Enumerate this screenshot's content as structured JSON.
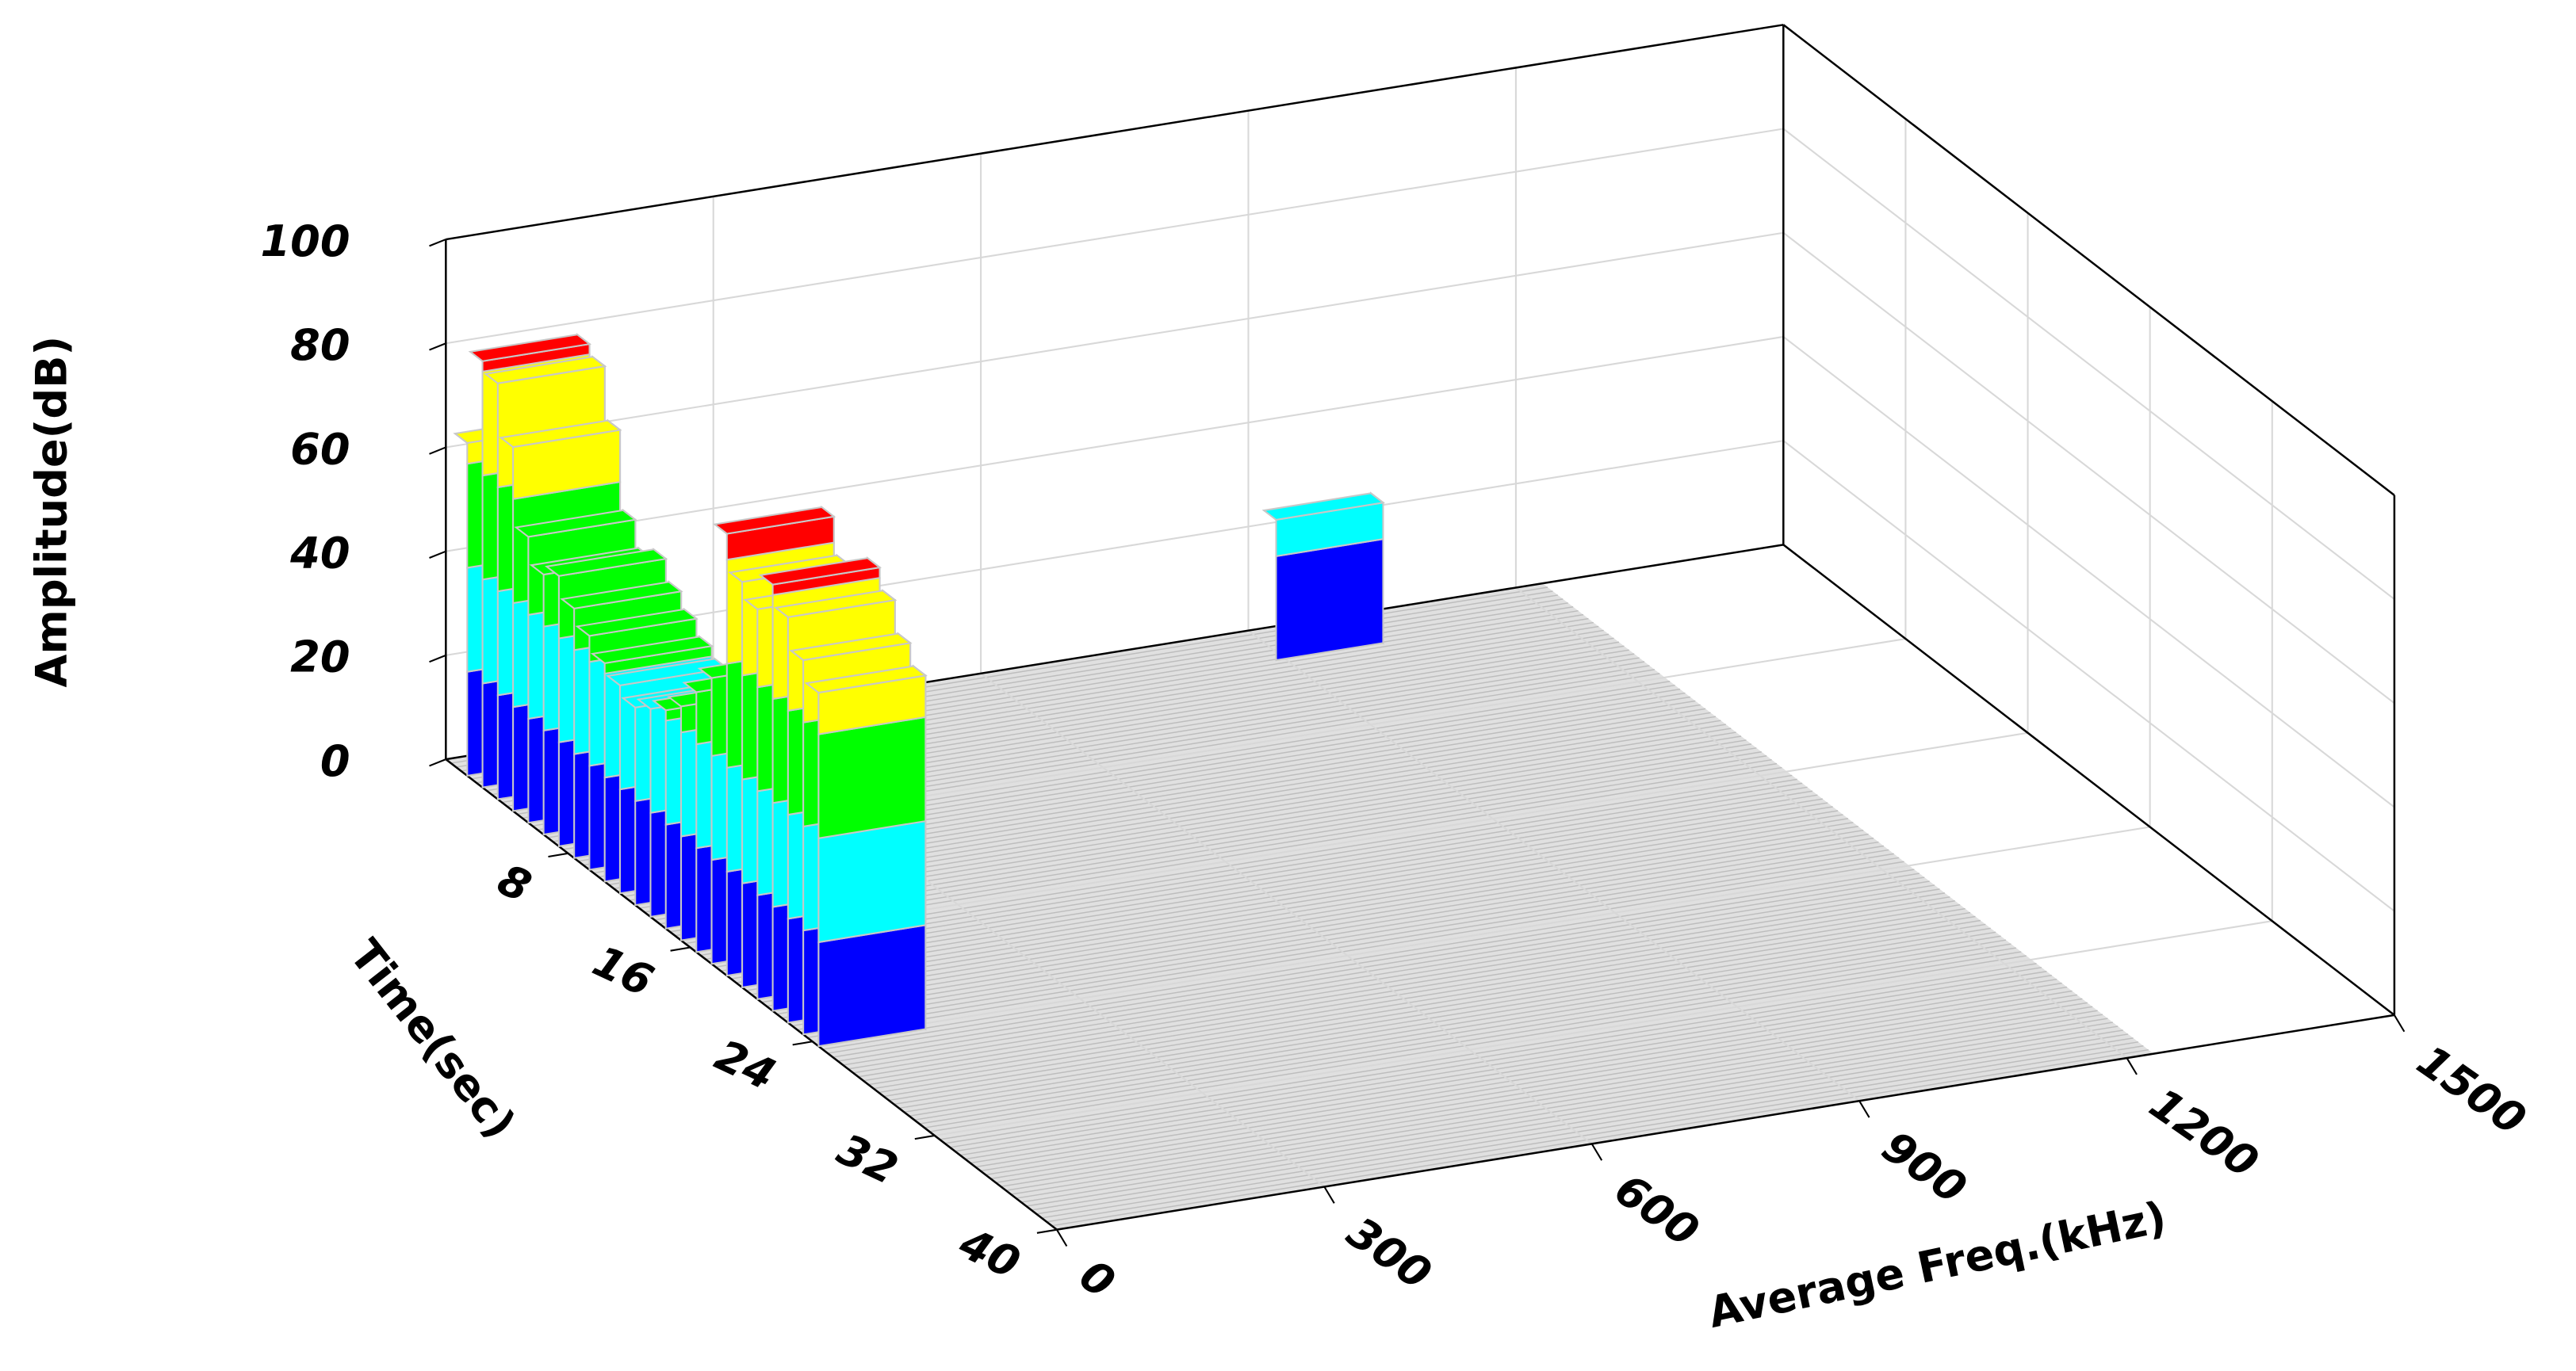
{
  "chart_data": {
    "type": "bar3d",
    "xlabel": "Average Freq.(kHz)",
    "ylabel": "Time(sec)",
    "zlabel": "Amplitude(dB)",
    "xlim": [
      0,
      1500
    ],
    "xticks": [
      0,
      300,
      600,
      900,
      1200,
      1500
    ],
    "ylim": [
      0,
      40
    ],
    "yticks": [
      8,
      16,
      24,
      32,
      40
    ],
    "zlim": [
      0,
      100
    ],
    "zticks": [
      0,
      20,
      40,
      60,
      80,
      100
    ],
    "band_colors": [
      "#0000ff",
      "#00ffff",
      "#00ff00",
      "#ffff00",
      "#ff0000"
    ],
    "grid": true,
    "x": [
      60,
      60,
      60,
      60,
      60,
      60,
      60,
      60,
      60,
      60,
      60,
      60,
      60,
      60,
      60,
      60,
      60,
      60,
      60,
      60,
      60,
      60,
      60,
      60,
      950
    ],
    "y": [
      1,
      2,
      3,
      4,
      5,
      6,
      7,
      8,
      9,
      10,
      11,
      12,
      13,
      14,
      15,
      16,
      17,
      18,
      19,
      20,
      21,
      22,
      23,
      24,
      2
    ],
    "z": [
      64,
      82,
      80,
      70,
      55,
      50,
      52,
      48,
      45,
      42,
      40,
      38,
      40,
      42,
      45,
      50,
      55,
      85,
      78,
      75,
      82,
      78,
      72,
      68,
      27
    ]
  }
}
